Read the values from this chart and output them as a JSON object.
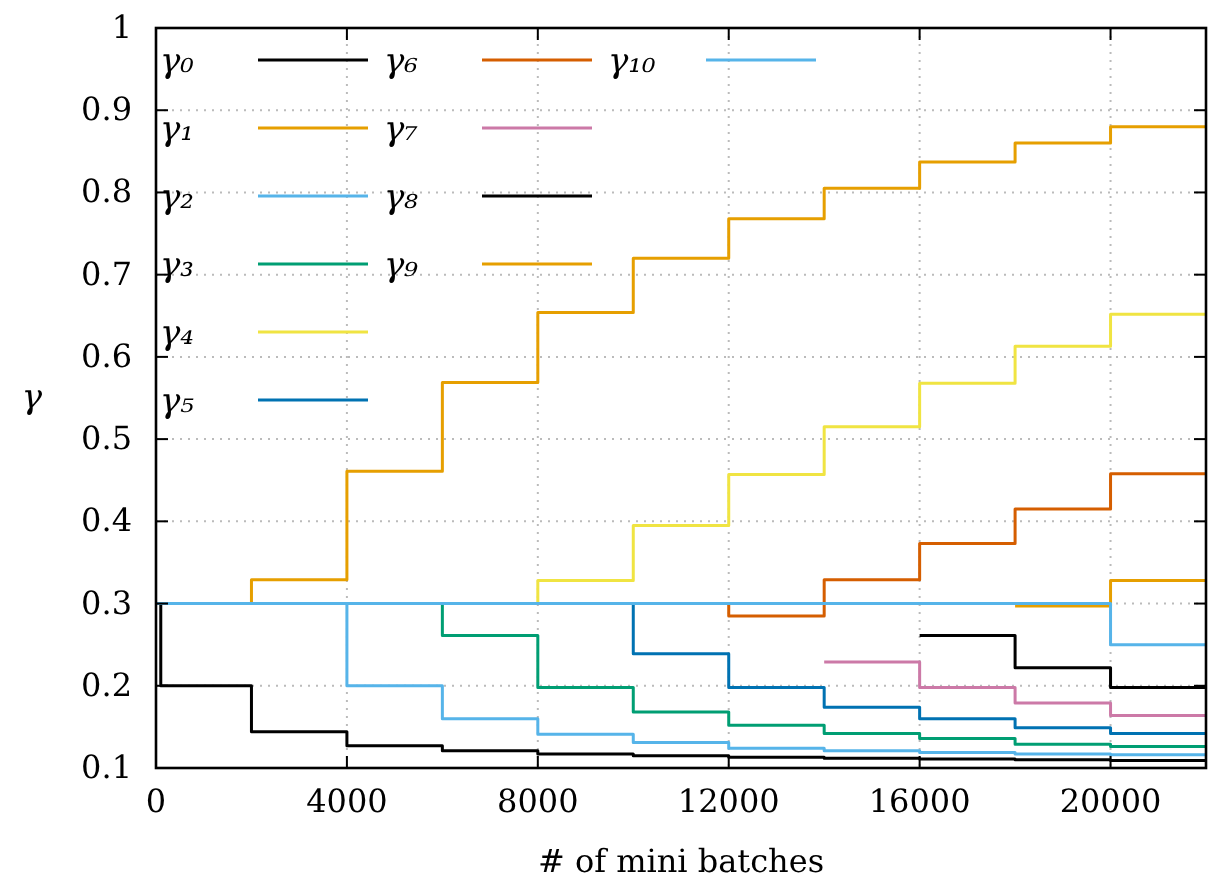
{
  "chart_data": {
    "type": "step",
    "xlabel": "# of mini batches",
    "ylabel": "γ",
    "xlim": [
      0,
      22000
    ],
    "xticks": [
      0,
      4000,
      8000,
      12000,
      16000,
      20000
    ],
    "ylim": [
      0.1,
      1
    ],
    "yticks": [
      0.1,
      0.2,
      0.3,
      0.4,
      0.5,
      0.6,
      0.7,
      0.8,
      0.9,
      1
    ],
    "grid": true,
    "legend": "top left",
    "line_style": "solid",
    "marker": "none",
    "series": [
      {
        "name": "γ₀",
        "color": "#000000",
        "x": [
          0,
          100,
          2000,
          4000,
          6000,
          8000,
          10000,
          12000,
          14000,
          16000,
          18000,
          20000,
          22000
        ],
        "values": [
          0.3,
          0.2,
          0.144,
          0.127,
          0.121,
          0.117,
          0.115,
          0.113,
          0.112,
          0.111,
          0.11,
          0.109,
          0.109
        ]
      },
      {
        "name": "γ₁",
        "color": "#e69f00",
        "x": [
          0,
          2000,
          4000,
          6000,
          8000,
          10000,
          12000,
          14000,
          16000,
          18000,
          20000,
          22000
        ],
        "values": [
          0.3,
          0.329,
          0.461,
          0.569,
          0.654,
          0.72,
          0.768,
          0.805,
          0.837,
          0.86,
          0.88,
          0.88
        ]
      },
      {
        "name": "γ₂",
        "color": "#56b4e9",
        "x": [
          0,
          4000,
          6000,
          8000,
          10000,
          12000,
          14000,
          16000,
          18000,
          20000,
          22000
        ],
        "values": [
          0.3,
          0.2,
          0.16,
          0.141,
          0.131,
          0.124,
          0.121,
          0.119,
          0.117,
          0.116,
          0.116
        ]
      },
      {
        "name": "γ₃",
        "color": "#009e73",
        "x": [
          0,
          6000,
          8000,
          10000,
          12000,
          14000,
          16000,
          18000,
          20000,
          22000
        ],
        "values": [
          0.3,
          0.261,
          0.198,
          0.168,
          0.152,
          0.142,
          0.136,
          0.129,
          0.126,
          0.126
        ]
      },
      {
        "name": "γ₄",
        "color": "#f0e442",
        "x": [
          0,
          8000,
          10000,
          12000,
          14000,
          16000,
          18000,
          20000,
          22000
        ],
        "values": [
          0.3,
          0.328,
          0.395,
          0.457,
          0.515,
          0.568,
          0.613,
          0.652,
          0.652
        ]
      },
      {
        "name": "γ₅",
        "color": "#0072b2",
        "x": [
          0,
          10000,
          12000,
          14000,
          16000,
          18000,
          20000,
          22000
        ],
        "values": [
          0.3,
          0.239,
          0.198,
          0.174,
          0.16,
          0.149,
          0.142,
          0.142
        ]
      },
      {
        "name": "γ₆",
        "color": "#d55e00",
        "x": [
          0,
          12000,
          14000,
          16000,
          18000,
          20000,
          22000
        ],
        "values": [
          0.3,
          0.285,
          0.329,
          0.373,
          0.415,
          0.458,
          0.458
        ]
      },
      {
        "name": "γ₇",
        "color": "#cc79a7",
        "x": [
          14000,
          16000,
          18000,
          20000,
          22000
        ],
        "values": [
          0.229,
          0.198,
          0.179,
          0.164,
          0.164
        ]
      },
      {
        "name": "γ₈",
        "color": "#000000",
        "x": [
          16000,
          18000,
          20000,
          22000
        ],
        "values": [
          0.261,
          0.222,
          0.198,
          0.198
        ]
      },
      {
        "name": "γ₉",
        "color": "#e69f00",
        "x": [
          18000,
          20000,
          22000
        ],
        "values": [
          0.297,
          0.328,
          0.328
        ]
      },
      {
        "name": "γ₁₀",
        "color": "#56b4e9",
        "x": [
          0,
          20000,
          22000
        ],
        "values": [
          0.3,
          0.25,
          0.25
        ]
      }
    ]
  }
}
